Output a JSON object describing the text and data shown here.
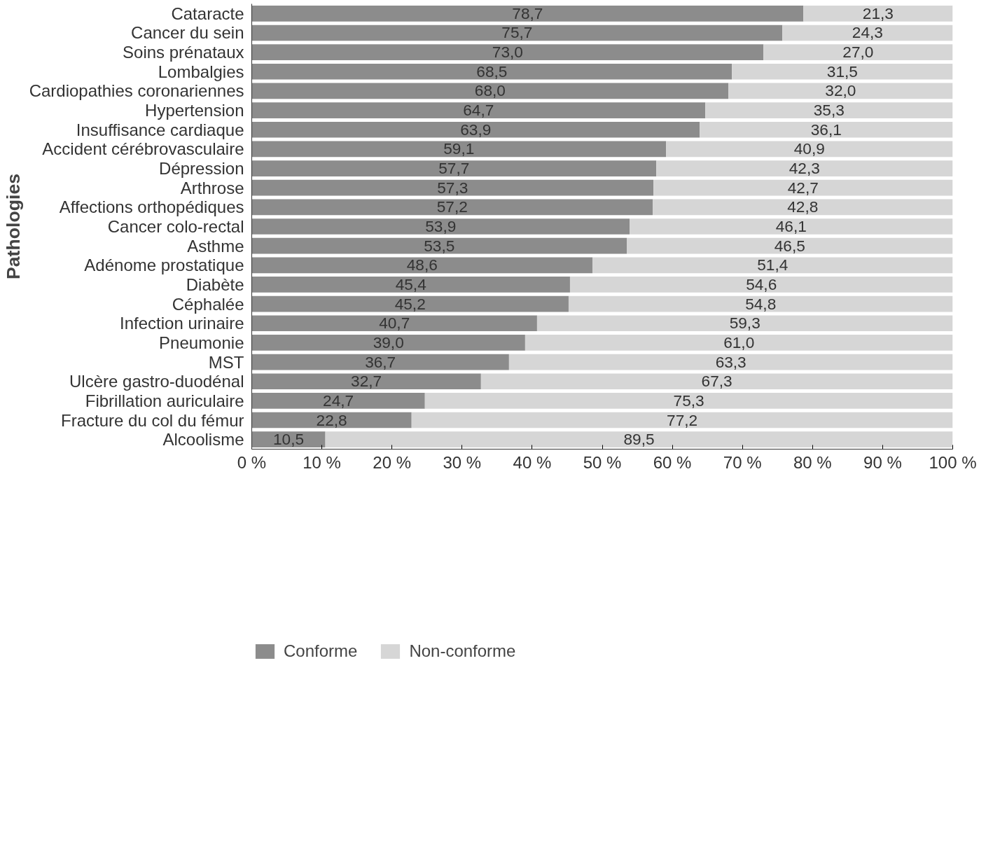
{
  "chart_data": {
    "type": "bar",
    "orientation": "horizontal",
    "stacked": true,
    "ylabel": "Pathologies",
    "categories": [
      "Cataracte",
      "Cancer du sein",
      "Soins prénataux",
      "Lombalgies",
      "Cardiopathies coronariennes",
      "Hypertension",
      "Insuffisance cardiaque",
      "Accident cérébrovasculaire",
      "Dépression",
      "Arthrose",
      "Affections orthopédiques",
      "Cancer colo-rectal",
      "Asthme",
      "Adénome prostatique",
      "Diabète",
      "Céphalée",
      "Infection urinaire",
      "Pneumonie",
      "MST",
      "Ulcère gastro-duodénal",
      "Fibrillation auriculaire",
      "Fracture du col du fémur",
      "Alcoolisme"
    ],
    "series": [
      {
        "name": "Conforme",
        "color": "#8c8c8c",
        "values": [
          78.7,
          75.7,
          73.0,
          68.5,
          68.0,
          64.7,
          63.9,
          59.1,
          57.7,
          57.3,
          57.2,
          53.9,
          53.5,
          48.6,
          45.4,
          45.2,
          40.7,
          39.0,
          36.7,
          32.7,
          24.7,
          22.8,
          10.5
        ],
        "value_labels": [
          "78,7",
          "75,7",
          "73,0",
          "68,5",
          "68,0",
          "64,7",
          "63,9",
          "59,1",
          "57,7",
          "57,3",
          "57,2",
          "53,9",
          "53,5",
          "48,6",
          "45,4",
          "45,2",
          "40,7",
          "39,0",
          "36,7",
          "32,7",
          "24,7",
          "22,8",
          "10,5"
        ]
      },
      {
        "name": "Non-conforme",
        "color": "#d6d6d6",
        "values": [
          21.3,
          24.3,
          27.0,
          31.5,
          32.0,
          35.3,
          36.1,
          40.9,
          42.3,
          42.7,
          42.8,
          46.1,
          46.5,
          51.4,
          54.6,
          54.8,
          59.3,
          61.0,
          63.3,
          67.3,
          75.3,
          77.2,
          89.5
        ],
        "value_labels": [
          "21,3",
          "24,3",
          "27,0",
          "31,5",
          "32,0",
          "35,3",
          "36,1",
          "40,9",
          "42,3",
          "42,7",
          "42,8",
          "46,1",
          "46,5",
          "51,4",
          "54,6",
          "54,8",
          "59,3",
          "61,0",
          "63,3",
          "67,3",
          "75,3",
          "77,2",
          "89,5"
        ]
      }
    ],
    "xlim": [
      0,
      100
    ],
    "xticks": [
      {
        "value": 0,
        "label": "0 %"
      },
      {
        "value": 10,
        "label": "10 %"
      },
      {
        "value": 20,
        "label": "20 %"
      },
      {
        "value": 30,
        "label": "30 %"
      },
      {
        "value": 40,
        "label": "40 %"
      },
      {
        "value": 50,
        "label": "50 %"
      },
      {
        "value": 60,
        "label": "60 %"
      },
      {
        "value": 70,
        "label": "70 %"
      },
      {
        "value": 80,
        "label": "80 %"
      },
      {
        "value": 90,
        "label": "90 %"
      },
      {
        "value": 100,
        "label": "100 %"
      }
    ],
    "legend": "bottom left",
    "grid": false
  }
}
